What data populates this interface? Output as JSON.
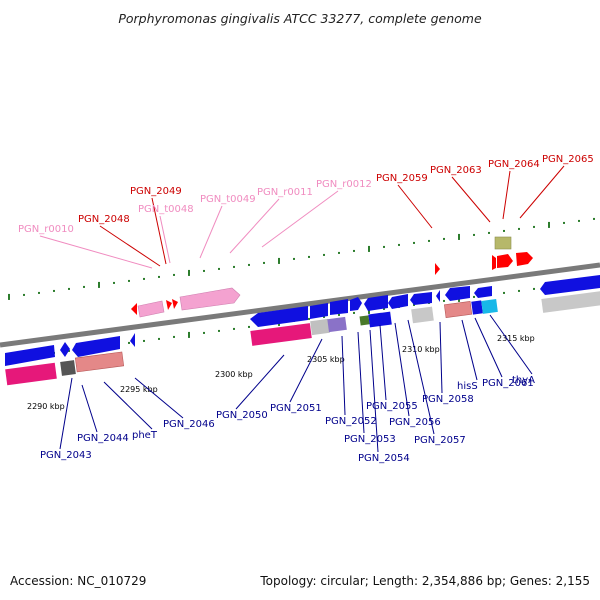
{
  "title": "Porphyromonas gingivalis ATCC 33277, complete genome",
  "footer": {
    "accession": "Accession: NC_010729",
    "summary": "Topology: circular; Length: 2,354,886 bp; Genes: 2,155"
  },
  "colors": {
    "gene_blue": "#1010e0",
    "gene_red": "#ff0000",
    "rna_pink": "#f4a2d0",
    "label_blue": "#00008b",
    "label_red": "#cc0000",
    "label_pink": "#f08cc0",
    "backbone": "#7a7a7a",
    "dot_green": "#2d7d2d"
  },
  "scale_ticks": [
    "2290 kbp",
    "2295 kbp",
    "2300 kbp",
    "2305 kbp",
    "2310 kbp",
    "2315 kbp"
  ],
  "upper_labels": [
    {
      "text": "PGN_r0010",
      "color": "pink"
    },
    {
      "text": "PGN_2048",
      "color": "red"
    },
    {
      "text": "PGN_2049",
      "color": "red"
    },
    {
      "text": "PGN_t0048",
      "color": "pink"
    },
    {
      "text": "PGN_t0049",
      "color": "pink"
    },
    {
      "text": "PGN_r0011",
      "color": "pink"
    },
    {
      "text": "PGN_r0012",
      "color": "pink"
    },
    {
      "text": "PGN_2059",
      "color": "red"
    },
    {
      "text": "PGN_2063",
      "color": "red"
    },
    {
      "text": "PGN_2064",
      "color": "red"
    },
    {
      "text": "PGN_2065",
      "color": "red"
    }
  ],
  "lower_labels": [
    "PGN_2043",
    "PGN_2044",
    "pheT",
    "PGN_2046",
    "PGN_2050",
    "PGN_2051",
    "PGN_2052",
    "PGN_2053",
    "PGN_2054",
    "PGN_2055",
    "PGN_2056",
    "PGN_2057",
    "PGN_2058",
    "hisS",
    "PGN_2061",
    "thyA"
  ]
}
